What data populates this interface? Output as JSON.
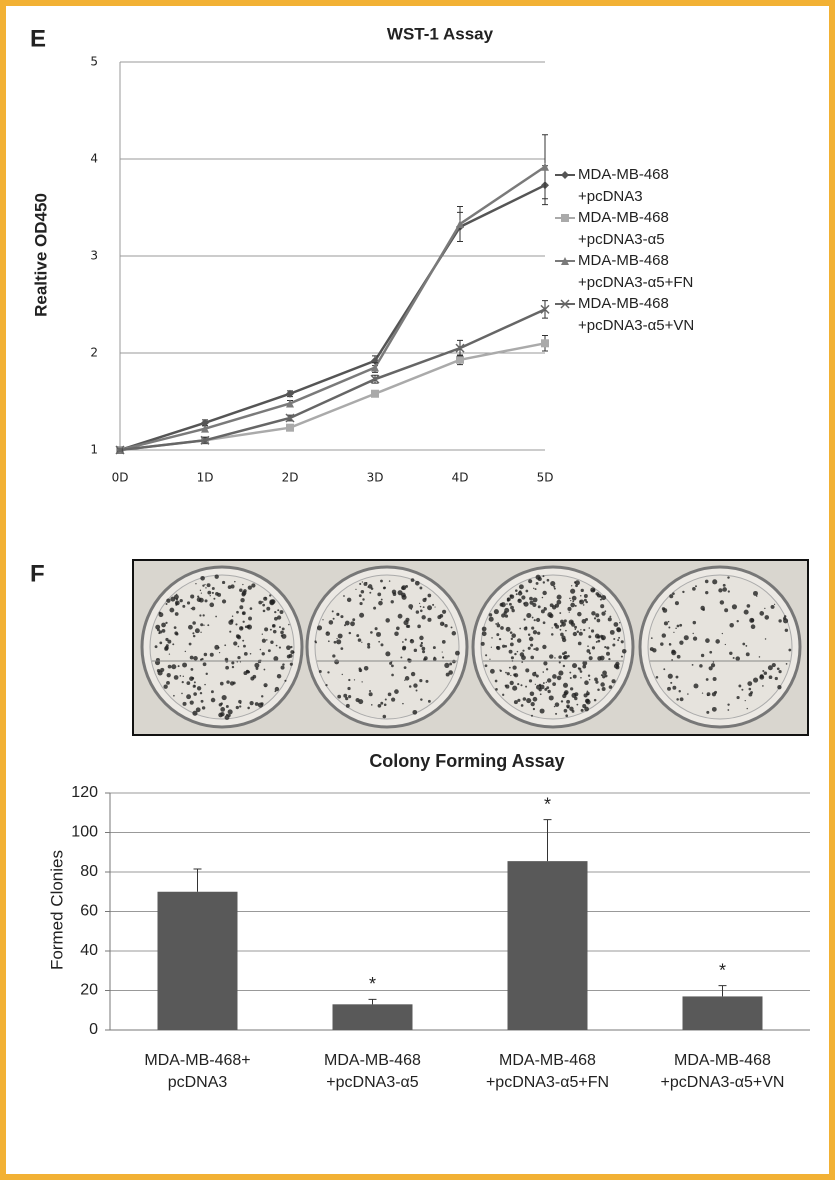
{
  "chart_data": [
    {
      "type": "line",
      "panel": "E",
      "title": "WST-1 Assay",
      "y_label": "Realtive OD450",
      "categories": [
        "0D",
        "1D",
        "2D",
        "3D",
        "4D",
        "5D"
      ],
      "ylim": [
        1,
        5
      ],
      "yticks": [
        1,
        2,
        3,
        4,
        5
      ],
      "grid": true,
      "series": [
        {
          "name": "MDA-MB-468 +pcDNA3",
          "color": "#555555",
          "marker": "diamond",
          "values": [
            1,
            1.28,
            1.58,
            1.92,
            3.3,
            3.73
          ],
          "errors": [
            0.01,
            0.03,
            0.03,
            0.05,
            0.15,
            0.2
          ]
        },
        {
          "name": "MDA-MB-468 +pcDNA3-α5",
          "color": "#aaaaaa",
          "marker": "square",
          "values": [
            1,
            1.1,
            1.23,
            1.58,
            1.93,
            2.1
          ],
          "errors": [
            0.01,
            0.03,
            0.03,
            0.03,
            0.05,
            0.08
          ]
        },
        {
          "name": "MDA-MB-468 +pcDNA3-α5+FN",
          "color": "#7a7a7a",
          "marker": "triangle",
          "values": [
            1,
            1.22,
            1.48,
            1.85,
            3.33,
            3.92
          ],
          "errors": [
            0.01,
            0.03,
            0.03,
            0.05,
            0.18,
            0.33
          ]
        },
        {
          "name": "MDA-MB-468 +pcDNA3-α5+VN",
          "color": "#666666",
          "marker": "x",
          "values": [
            1,
            1.1,
            1.33,
            1.73,
            2.05,
            2.45
          ],
          "errors": [
            0.01,
            0.03,
            0.03,
            0.04,
            0.08,
            0.09
          ]
        }
      ]
    },
    {
      "type": "bar",
      "panel": "F",
      "title": "Colony Forming Assay",
      "y_label": "Formed Clonies",
      "categories": [
        "MDA-MB-468+ pcDNA3",
        "MDA-MB-468 +pcDNA3-α5",
        "MDA-MB-468 +pcDNA3-α5+FN",
        "MDA-MB-468 +pcDNA3-α5+VN"
      ],
      "values": [
        70,
        13,
        85.5,
        17
      ],
      "errors": [
        11.5,
        2.5,
        21,
        5.5
      ],
      "annotations": [
        null,
        "*",
        "*",
        "*"
      ],
      "color": "#595959",
      "ylim": [
        0,
        120
      ],
      "yticks": [
        0,
        20,
        40,
        60,
        80,
        100,
        120
      ],
      "grid": true
    }
  ]
}
